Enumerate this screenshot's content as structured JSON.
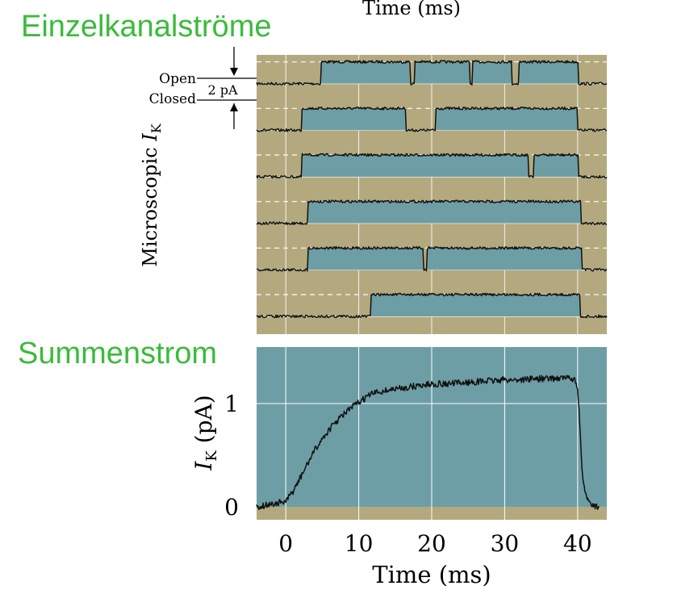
{
  "top_caption": "Time (ms)",
  "heading_single": "Einzelkanalströme",
  "heading_sum": "Summenstrom",
  "colors": {
    "olive": "#b4a97e",
    "teal": "#6e9ea5",
    "trace": "#111111",
    "green_heading": "#3bbb3b",
    "white_grid": "#ffffff"
  },
  "chart_data": [
    {
      "type": "line",
      "title": "",
      "ylabel": "Microscopic I_K",
      "ylabel_main": "Microscopic ",
      "ylabel_italic": "I",
      "ylabel_sub": "K",
      "scale_labels": {
        "open": "Open",
        "closed": "Closed",
        "amplitude": "2 pA"
      },
      "xlim": [
        -4,
        44
      ],
      "x_unit": "ms",
      "grid": true,
      "series": [
        {
          "open_at": 4.8,
          "close_at": 40.1,
          "closures": [
            [
              17.0,
              17.7
            ],
            [
              25.2,
              25.6
            ],
            [
              31.0,
              31.9
            ]
          ]
        },
        {
          "open_at": 2.2,
          "close_at": 40.0,
          "closures": [
            [
              16.5,
              20.5
            ]
          ]
        },
        {
          "open_at": 2.2,
          "close_at": 40.1,
          "closures": [
            [
              33.3,
              34.0
            ]
          ]
        },
        {
          "open_at": 3.0,
          "close_at": 40.4,
          "closures": []
        },
        {
          "open_at": 3.0,
          "close_at": 40.6,
          "closures": [
            [
              18.8,
              19.3
            ]
          ]
        },
        {
          "open_at": 11.7,
          "close_at": 40.3,
          "closures": []
        }
      ]
    },
    {
      "type": "line",
      "title": "",
      "xlabel": "Time (ms)",
      "ylabel": "I_K (pA)",
      "ylabel_italic": "I",
      "ylabel_sub": "K",
      "ylabel_unit": " (pA)",
      "xlim": [
        -4,
        44
      ],
      "ylim": [
        -0.05,
        1.45
      ],
      "x_ticks": [
        0,
        10,
        20,
        30,
        40
      ],
      "y_ticks": [
        0,
        1
      ],
      "grid": true,
      "x": [
        -4,
        0,
        1,
        2,
        3,
        4,
        5,
        6,
        7,
        8,
        9,
        10,
        11,
        12,
        14,
        16,
        18,
        20,
        22,
        24,
        26,
        28,
        30,
        32,
        34,
        36,
        38,
        39.5,
        40.0,
        40.3,
        40.6,
        41,
        42,
        43
      ],
      "values": [
        0.0,
        0.05,
        0.15,
        0.28,
        0.42,
        0.55,
        0.66,
        0.75,
        0.83,
        0.9,
        0.96,
        1.01,
        1.06,
        1.1,
        1.13,
        1.15,
        1.17,
        1.19,
        1.19,
        1.2,
        1.21,
        1.22,
        1.23,
        1.23,
        1.24,
        1.24,
        1.25,
        1.24,
        1.15,
        0.8,
        0.35,
        0.12,
        0.03,
        -0.02
      ]
    }
  ]
}
